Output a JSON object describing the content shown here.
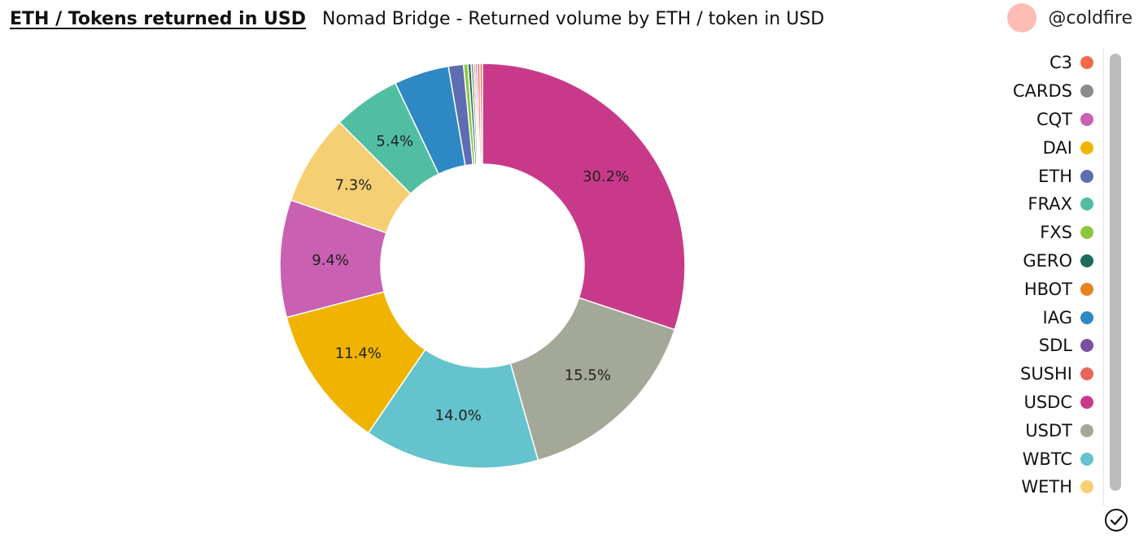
{
  "header": {
    "tab_title": "ETH / Tokens returned in USD",
    "subtitle": "Nomad Bridge - Returned volume by ETH / token in USD"
  },
  "user": {
    "handle": "@coldfire",
    "avatar_color": "#fdbdb4"
  },
  "chart_data": {
    "type": "pie",
    "donut": true,
    "title": "",
    "legend_position": "right",
    "slices": [
      {
        "label": "USDC",
        "value": 30.2,
        "color": "#c9398a",
        "shown_label": "30.2%"
      },
      {
        "label": "USDT",
        "value": 15.5,
        "color": "#a3a898",
        "shown_label": "15.5%"
      },
      {
        "label": "WBTC",
        "value": 14.0,
        "color": "#64c3cc",
        "shown_label": "14.0%"
      },
      {
        "label": "DAI",
        "value": 11.4,
        "color": "#f0b400",
        "shown_label": "11.4%"
      },
      {
        "label": "CQT",
        "value": 9.4,
        "color": "#ca60b2",
        "shown_label": "9.4%"
      },
      {
        "label": "WETH",
        "value": 7.3,
        "color": "#f6cf72",
        "shown_label": "7.3%"
      },
      {
        "label": "FRAX",
        "value": 5.4,
        "color": "#52bea1",
        "shown_label": "5.4%"
      },
      {
        "label": "IAG",
        "value": 4.4,
        "color": "#2e88c4",
        "shown_label": ""
      },
      {
        "label": "ETH",
        "value": 1.2,
        "color": "#5e6cb2",
        "shown_label": ""
      },
      {
        "label": "FXS",
        "value": 0.35,
        "color": "#8cc63f",
        "shown_label": ""
      },
      {
        "label": "GERO",
        "value": 0.25,
        "color": "#1d6b5c",
        "shown_label": ""
      },
      {
        "label": "CARDS",
        "value": 0.2,
        "color": "#8c8c8c",
        "shown_label": ""
      },
      {
        "label": "HBOT",
        "value": 0.15,
        "color": "#e8821f",
        "shown_label": ""
      },
      {
        "label": "SDL",
        "value": 0.15,
        "color": "#7a4fa3",
        "shown_label": ""
      },
      {
        "label": "SUSHI",
        "value": 0.2,
        "color": "#e8655a",
        "shown_label": ""
      },
      {
        "label": "C3",
        "value": 0.2,
        "color": "#f26a4a",
        "shown_label": ""
      }
    ]
  },
  "legend": {
    "items": [
      {
        "label": "C3",
        "color": "#f26a4a"
      },
      {
        "label": "CARDS",
        "color": "#8c8c8c"
      },
      {
        "label": "CQT",
        "color": "#ca60b2"
      },
      {
        "label": "DAI",
        "color": "#f0b400"
      },
      {
        "label": "ETH",
        "color": "#5e6cb2"
      },
      {
        "label": "FRAX",
        "color": "#52bea1"
      },
      {
        "label": "FXS",
        "color": "#8cc63f"
      },
      {
        "label": "GERO",
        "color": "#1d6b5c"
      },
      {
        "label": "HBOT",
        "color": "#e8821f"
      },
      {
        "label": "IAG",
        "color": "#2e88c4"
      },
      {
        "label": "SDL",
        "color": "#7a4fa3"
      },
      {
        "label": "SUSHI",
        "color": "#e8655a"
      },
      {
        "label": "USDC",
        "color": "#c9398a"
      },
      {
        "label": "USDT",
        "color": "#a3a898"
      },
      {
        "label": "WBTC",
        "color": "#64c3cc"
      },
      {
        "label": "WETH",
        "color": "#f6cf72"
      }
    ]
  },
  "controls": {
    "confirm_icon": "check-circle-icon"
  }
}
